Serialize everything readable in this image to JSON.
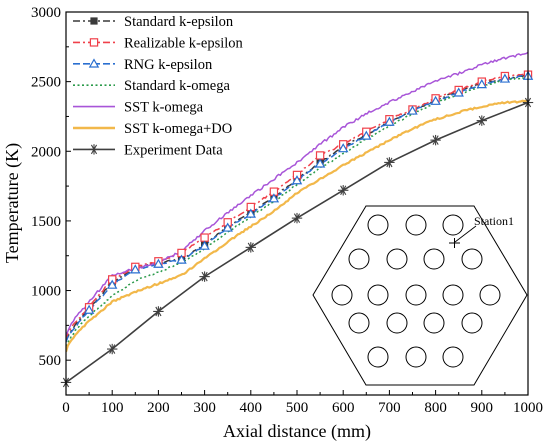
{
  "chart_data": {
    "type": "line",
    "xlabel": "Axial distance (mm)",
    "ylabel": "Temperature (K)",
    "xlim": [
      0,
      1000
    ],
    "ylim": [
      250,
      3000
    ],
    "xticks": [
      0,
      100,
      200,
      300,
      400,
      500,
      600,
      700,
      800,
      900,
      1000
    ],
    "yticks": [
      500,
      1000,
      1500,
      2000,
      2500,
      3000
    ],
    "grid": false,
    "legend_position": "top-left",
    "series": [
      {
        "name": "Standard k-epsilon",
        "color": "#3a3a3a",
        "dash": "dashdot",
        "marker": "filled-square",
        "x": [
          0,
          5,
          20,
          50,
          100,
          150,
          200,
          250,
          300,
          350,
          400,
          450,
          500,
          550,
          600,
          650,
          700,
          750,
          800,
          850,
          900,
          950,
          990,
          1000
        ],
        "y": [
          640,
          680,
          750,
          870,
          1060,
          1160,
          1200,
          1225,
          1330,
          1460,
          1560,
          1670,
          1800,
          1920,
          2030,
          2120,
          2210,
          2290,
          2370,
          2430,
          2490,
          2520,
          2540,
          2550
        ]
      },
      {
        "name": "Realizable k-epsilon",
        "color": "#f0404a",
        "dash": "dashdot",
        "marker": "open-square",
        "x": [
          0,
          5,
          20,
          50,
          100,
          150,
          200,
          250,
          300,
          350,
          400,
          450,
          500,
          550,
          600,
          650,
          700,
          750,
          800,
          850,
          900,
          950,
          990,
          1000
        ],
        "y": [
          650,
          700,
          770,
          880,
          1080,
          1170,
          1210,
          1270,
          1380,
          1490,
          1600,
          1710,
          1830,
          1970,
          2050,
          2140,
          2230,
          2300,
          2380,
          2440,
          2500,
          2540,
          2550,
          2550
        ]
      },
      {
        "name": "RNG k-epsilon",
        "color": "#2a6fd0",
        "dash": "dash",
        "marker": "open-triangle",
        "x": [
          0,
          5,
          20,
          50,
          100,
          150,
          200,
          250,
          300,
          350,
          400,
          450,
          500,
          550,
          600,
          650,
          700,
          750,
          800,
          850,
          900,
          950,
          990,
          1000
        ],
        "y": [
          630,
          670,
          740,
          860,
          1040,
          1150,
          1190,
          1220,
          1320,
          1450,
          1550,
          1660,
          1790,
          1910,
          2020,
          2110,
          2210,
          2290,
          2360,
          2420,
          2480,
          2520,
          2540,
          2540
        ]
      },
      {
        "name": "Standard k-omega",
        "color": "#2a9a4a",
        "dash": "dot",
        "marker": "none",
        "x": [
          0,
          5,
          20,
          50,
          100,
          150,
          200,
          250,
          300,
          350,
          400,
          450,
          500,
          550,
          600,
          650,
          700,
          750,
          800,
          850,
          900,
          950,
          1000
        ],
        "y": [
          600,
          640,
          710,
          820,
          960,
          1070,
          1130,
          1200,
          1300,
          1420,
          1530,
          1640,
          1760,
          1880,
          1980,
          2090,
          2180,
          2270,
          2350,
          2410,
          2470,
          2510,
          2530
        ]
      },
      {
        "name": "SST k-omega",
        "color": "#a855d8",
        "dash": "solid",
        "marker": "none",
        "x": [
          0,
          5,
          20,
          50,
          100,
          150,
          200,
          250,
          300,
          350,
          400,
          450,
          500,
          550,
          600,
          650,
          700,
          750,
          800,
          850,
          900,
          950,
          990,
          1000
        ],
        "y": [
          680,
          720,
          800,
          920,
          1110,
          1160,
          1200,
          1280,
          1430,
          1560,
          1680,
          1800,
          1920,
          2050,
          2170,
          2270,
          2350,
          2430,
          2500,
          2560,
          2620,
          2670,
          2700,
          2710
        ]
      },
      {
        "name": "SST k-omega+DO",
        "color": "#f2b84a",
        "dash": "solid",
        "marker": "none",
        "x": [
          0,
          5,
          20,
          50,
          100,
          150,
          200,
          250,
          300,
          350,
          400,
          450,
          500,
          550,
          600,
          650,
          700,
          750,
          800,
          850,
          900,
          950,
          1000
        ],
        "y": [
          560,
          610,
          680,
          780,
          920,
          990,
          1050,
          1110,
          1230,
          1350,
          1460,
          1570,
          1700,
          1800,
          1900,
          1990,
          2080,
          2160,
          2230,
          2280,
          2320,
          2350,
          2360
        ]
      },
      {
        "name": "Experiment Data",
        "color": "#3f3f3f",
        "dash": "solid",
        "marker": "star",
        "x": [
          0,
          100,
          200,
          300,
          400,
          500,
          600,
          700,
          800,
          900,
          1000
        ],
        "y": [
          340,
          580,
          850,
          1100,
          1310,
          1520,
          1720,
          1920,
          2080,
          2220,
          2350
        ]
      }
    ],
    "inset": {
      "label": "Station1"
    }
  }
}
